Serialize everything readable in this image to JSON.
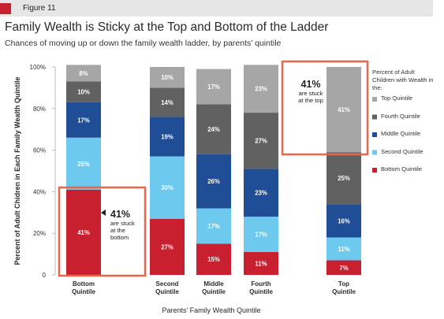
{
  "figure_label": "Figure 11",
  "colors": {
    "top": "#a6a6a6",
    "fourth": "#616161",
    "middle": "#1f4e97",
    "second": "#6ec9ef",
    "bottom": "#c8202f",
    "accent": "#c8202f",
    "callout_border": "#e8664a"
  },
  "chart_data": {
    "type": "bar",
    "stacked": true,
    "title": "Family Wealth is Sticky at the Top and Bottom of the Ladder",
    "subtitle": "Chances of moving up or down the family wealth ladder, by parents’ quintile",
    "xlabel": "Parents’ Family Wealth Quintile",
    "ylabel": "Percent of Adult Chidren in Each Family Wealth Quintile",
    "ylim": [
      0,
      100
    ],
    "yticks": [
      "0",
      "20%",
      "40%",
      "60%",
      "80%",
      "100%"
    ],
    "categories": [
      [
        "Bottom",
        "Quintile"
      ],
      [
        "Second",
        "Quintile"
      ],
      [
        "Middle",
        "Quintile"
      ],
      [
        "Fourth",
        "Quintile"
      ],
      [
        "Top",
        "Quintile"
      ]
    ],
    "series": [
      {
        "name": "Bottom Quintile",
        "key": "bottom",
        "values": [
          41,
          27,
          15,
          11,
          7
        ]
      },
      {
        "name": "Second Quintile",
        "key": "second",
        "values": [
          25,
          30,
          17,
          17,
          11
        ]
      },
      {
        "name": "Middle Quintile",
        "key": "middle",
        "values": [
          17,
          19,
          26,
          23,
          16
        ]
      },
      {
        "name": "Fourth Quintile",
        "key": "fourth",
        "values": [
          10,
          14,
          24,
          27,
          25
        ]
      },
      {
        "name": "Top Quintile",
        "key": "top",
        "values": [
          8,
          10,
          17,
          23,
          41
        ]
      }
    ],
    "legend_title": "Percent of Adult Children with Wealth in the:",
    "legend_position": "right"
  },
  "callouts": {
    "bottom": {
      "percent": "41%",
      "lines": [
        "are stuck",
        "at the",
        "bottom"
      ]
    },
    "top": {
      "percent": "41%",
      "lines": [
        "are stuck",
        "at the top"
      ]
    }
  }
}
